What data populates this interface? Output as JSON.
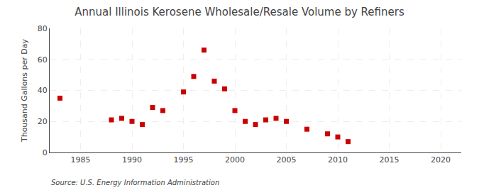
{
  "chart_data": {
    "type": "scatter",
    "title": "Annual Illinois Kerosene Wholesale/Resale Volume by Refiners",
    "ylabel": "Thousand Gallons per Day",
    "annotations": [
      "Source: U.S. Energy Information Administration"
    ],
    "x": [
      1983,
      1988,
      1989,
      1990,
      1991,
      1992,
      1993,
      1995,
      1996,
      1997,
      1998,
      1999,
      2000,
      2001,
      2002,
      2003,
      2004,
      2005,
      2007,
      2009,
      2010,
      2011
    ],
    "values": [
      35,
      21,
      22,
      20,
      18,
      29,
      27,
      39,
      49,
      66,
      46,
      41,
      27,
      20,
      18,
      21,
      22,
      20,
      15,
      12,
      10,
      7
    ],
    "color": "#cc0000",
    "marker": "square",
    "xlim": [
      1982,
      2022
    ],
    "ylim": [
      0,
      80
    ],
    "xticks": [
      1985,
      1990,
      1995,
      2000,
      2005,
      2010,
      2015,
      2020
    ],
    "yticks": [
      0,
      20,
      40,
      60,
      80
    ],
    "grid": true
  }
}
